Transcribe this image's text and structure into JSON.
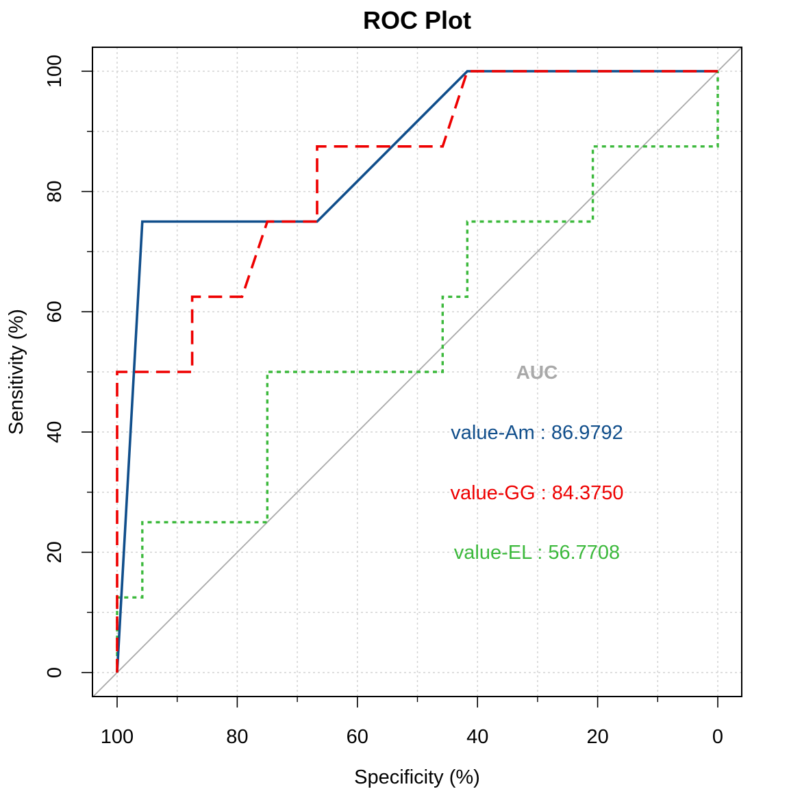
{
  "chart_data": {
    "type": "line",
    "title": "ROC Plot",
    "xlabel": "Specificity (%)",
    "ylabel": "Sensitivity (%)",
    "xlim": [
      100,
      0
    ],
    "ylim": [
      0,
      100
    ],
    "x_reversed": true,
    "x_ticks": [
      100,
      80,
      60,
      40,
      20,
      0
    ],
    "y_ticks": [
      0,
      20,
      40,
      60,
      80,
      100
    ],
    "x_tick_labels": [
      "100",
      "80",
      "60",
      "40",
      "20",
      "0"
    ],
    "y_tick_labels": [
      "0",
      "20",
      "40",
      "60",
      "80",
      "100"
    ],
    "grid": true,
    "grid_style": "dotted",
    "diagonal_reference": true,
    "legend": {
      "title": "AUC",
      "title_color": "#a9a9a9",
      "placement": "center-right",
      "entries": [
        {
          "text": "value-Am : 86.9792",
          "color": "#104e8b"
        },
        {
          "text": "value-GG : 84.3750",
          "color": "#ee0000"
        },
        {
          "text": "value-EL : 56.7708",
          "color": "#3cb93c"
        }
      ]
    },
    "series": [
      {
        "name": "value-Am",
        "color": "#104e8b",
        "dash": "solid",
        "x": [
          100,
          95.8,
          66.7,
          41.7,
          0
        ],
        "y": [
          0,
          75,
          75,
          100,
          100
        ]
      },
      {
        "name": "value-GG",
        "color": "#ee0000",
        "dash": "dashed",
        "x": [
          100,
          100,
          87.5,
          87.5,
          79.2,
          75,
          66.7,
          66.7,
          45.8,
          41.7,
          0
        ],
        "y": [
          0,
          50,
          50,
          62.5,
          62.5,
          75,
          75,
          87.5,
          87.5,
          100,
          100
        ]
      },
      {
        "name": "value-EL",
        "color": "#3cb93c",
        "dash": "dotted",
        "x": [
          100,
          100,
          95.8,
          95.8,
          75,
          75,
          45.8,
          45.8,
          41.7,
          41.7,
          20.8,
          20.8,
          0,
          0
        ],
        "y": [
          0,
          12.5,
          12.5,
          25,
          25,
          50,
          50,
          62.5,
          62.5,
          75,
          75,
          87.5,
          87.5,
          100
        ]
      }
    ]
  }
}
